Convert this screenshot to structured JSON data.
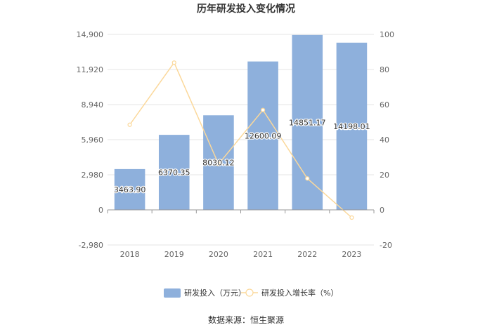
{
  "chart_data": {
    "type": "bar",
    "title": "历年研发投入变化情况",
    "categories": [
      "2018",
      "2019",
      "2020",
      "2021",
      "2022",
      "2023"
    ],
    "series": [
      {
        "name": "研发投入（万元）",
        "type": "bar",
        "axis": "left",
        "values": [
          3463.9,
          6370.35,
          8030.12,
          12600.09,
          14851.17,
          14198.01
        ],
        "labels": [
          "3463.90",
          "6370.35",
          "8030.12",
          "12600.09",
          "14851.17",
          "14198.01"
        ],
        "color": "#8eb0dc"
      },
      {
        "name": "研发投入增长率（%）",
        "type": "line",
        "axis": "right",
        "values": [
          48.5,
          83.9,
          26.1,
          56.9,
          17.9,
          -4.4
        ],
        "color": "#fbd89a"
      }
    ],
    "y_left": {
      "ticks": [
        "14,900",
        "11,920",
        "8,940",
        "5,960",
        "2,980",
        "0",
        "-2,980"
      ],
      "ylim": [
        -2980,
        14900
      ]
    },
    "y_right": {
      "ticks": [
        "100",
        "80",
        "60",
        "40",
        "20",
        "0",
        "-20"
      ],
      "ylim": [
        -20,
        100
      ]
    },
    "grid": true,
    "legend_position": "bottom"
  },
  "source": "数据来源：恒生聚源"
}
